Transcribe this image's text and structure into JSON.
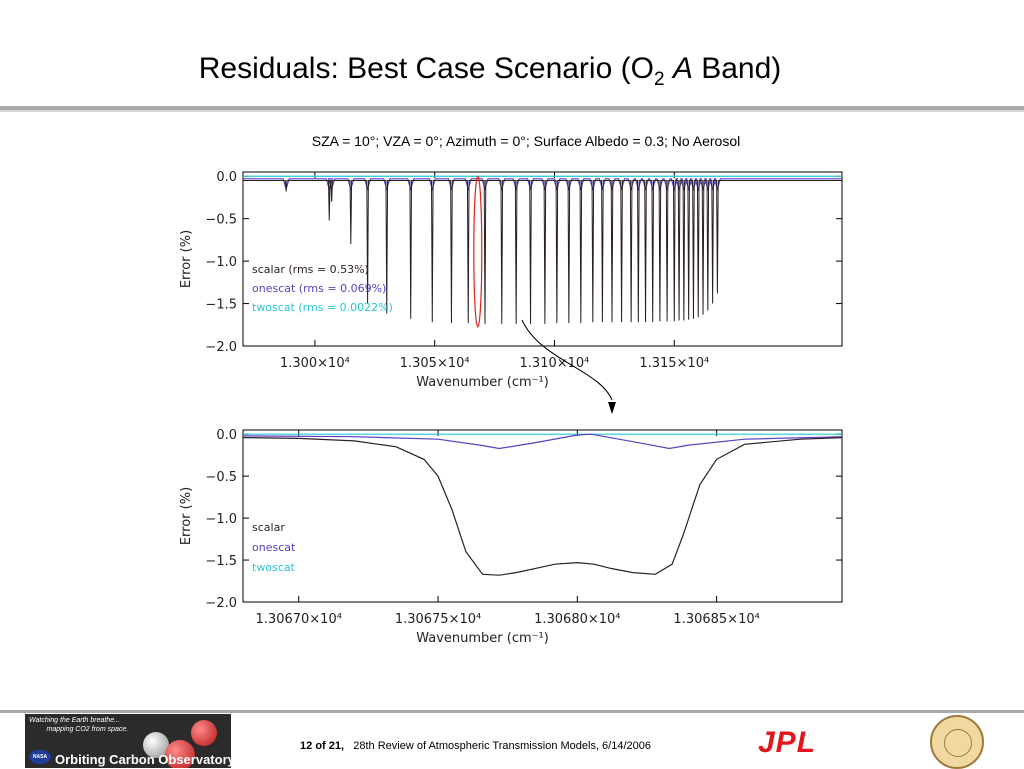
{
  "slide": {
    "title_main": "Residuals: Best Case Scenario (O",
    "title_sub": "2",
    "title_italic": "A",
    "title_end": " Band)",
    "subtitle": "SZA = 10°; VZA = 0°; Azimuth = 0°; Surface Albedo = 0.3; No Aerosol"
  },
  "footer": {
    "page_num": "12",
    "page_of": "of",
    "page_total": "21,",
    "event": "28th Review of Atmospheric Transmission Models, 6/14/2006",
    "oco_tagline_1": "Watching the Earth breathe...",
    "oco_tagline_2": "mapping CO2 from space.",
    "oco_name": "Orbiting Carbon Observatory",
    "nasa": "NASA",
    "jpl": "JPL"
  },
  "colors": {
    "scalar": "#2a1f24",
    "onescat": "#5a3fc0",
    "twoscat": "#27c6d8",
    "zoom_marker": "#e0201c"
  },
  "chart_data": [
    {
      "type": "line",
      "xlabel": "Wavenumber (cm⁻¹)",
      "ylabel": "Error (%)",
      "xlim": [
        12970,
        13220
      ],
      "ylim": [
        -2.0,
        0.05
      ],
      "xticks": [
        13000,
        13050,
        13100,
        13150
      ],
      "xtick_labels": [
        "1.300×10⁴",
        "1.305×10⁴",
        "1.310×10⁴",
        "1.315×10⁴"
      ],
      "yticks": [
        0.0,
        -0.5,
        -1.0,
        -1.5,
        -2.0
      ],
      "ytick_labels": [
        "0.0",
        "−0.5",
        "−1.0",
        "−1.5",
        "−2.0"
      ],
      "series": [
        {
          "name": "scalar (rms = 0.53%)",
          "baseline": -0.05,
          "lines": [
            [
              12988,
              -0.18
            ],
            [
              13006,
              -0.52
            ],
            [
              13007,
              -0.3
            ],
            [
              13015,
              -0.8
            ],
            [
              13022,
              -1.5
            ],
            [
              13030,
              -1.62
            ],
            [
              13040,
              -1.68
            ],
            [
              13049,
              -1.72
            ],
            [
              13057,
              -1.73
            ],
            [
              13064,
              -1.73
            ],
            [
              13071,
              -1.74
            ],
            [
              13078,
              -1.74
            ],
            [
              13084,
              -1.74
            ],
            [
              13090,
              -1.74
            ],
            [
              13096,
              -1.74
            ],
            [
              13101,
              -1.73
            ],
            [
              13106,
              -1.73
            ],
            [
              13111,
              -1.73
            ],
            [
              13116,
              -1.72
            ],
            [
              13120,
              -1.72
            ],
            [
              13124,
              -1.72
            ],
            [
              13128,
              -1.72
            ],
            [
              13132,
              -1.72
            ],
            [
              13135,
              -1.72
            ],
            [
              13138,
              -1.72
            ],
            [
              13141,
              -1.72
            ],
            [
              13144,
              -1.71
            ],
            [
              13147,
              -1.71
            ],
            [
              13150,
              -1.71
            ],
            [
              13152,
              -1.7
            ],
            [
              13154,
              -1.7
            ],
            [
              13156,
              -1.69
            ],
            [
              13158,
              -1.68
            ],
            [
              13160,
              -1.66
            ],
            [
              13162,
              -1.63
            ],
            [
              13164,
              -1.58
            ],
            [
              13166,
              -1.5
            ],
            [
              13168,
              -1.38
            ]
          ]
        },
        {
          "name": "onescat (rms = 0.069%)",
          "baseline": -0.03,
          "dips": -0.15
        },
        {
          "name": "twoscat (rms = 0.0022%)",
          "baseline": 0.0
        }
      ],
      "zoom_line": 13068
    },
    {
      "type": "line",
      "xlabel": "Wavenumber (cm⁻¹)",
      "ylabel": "Error (%)",
      "xlim": [
        13066.8,
        13068.95
      ],
      "ylim": [
        -2.0,
        0.05
      ],
      "xticks": [
        13067.0,
        13067.5,
        13068.0,
        13068.5
      ],
      "xtick_labels": [
        "1.30670×10⁴",
        "1.30675×10⁴",
        "1.30680×10⁴",
        "1.30685×10⁴"
      ],
      "yticks": [
        0.0,
        -0.5,
        -1.0,
        -1.5,
        -2.0
      ],
      "ytick_labels": [
        "0.0",
        "−0.5",
        "−1.0",
        "−1.5",
        "−2.0"
      ],
      "series": [
        {
          "name": "scalar",
          "x": [
            13066.8,
            13067.0,
            13067.2,
            13067.35,
            13067.45,
            13067.5,
            13067.55,
            13067.6,
            13067.66,
            13067.72,
            13067.78,
            13067.85,
            13067.92,
            13068.0,
            13068.06,
            13068.12,
            13068.2,
            13068.28,
            13068.34,
            13068.38,
            13068.44,
            13068.5,
            13068.6,
            13068.8,
            13068.95
          ],
          "y": [
            -0.04,
            -0.05,
            -0.08,
            -0.15,
            -0.3,
            -0.5,
            -0.9,
            -1.4,
            -1.67,
            -1.68,
            -1.65,
            -1.6,
            -1.55,
            -1.53,
            -1.55,
            -1.6,
            -1.65,
            -1.67,
            -1.55,
            -1.2,
            -0.6,
            -0.3,
            -0.12,
            -0.06,
            -0.04
          ]
        },
        {
          "name": "onescat",
          "x": [
            13066.8,
            13067.2,
            13067.5,
            13067.65,
            13067.72,
            13067.85,
            13068.0,
            13068.05,
            13068.2,
            13068.33,
            13068.4,
            13068.6,
            13068.95
          ],
          "y": [
            -0.02,
            -0.03,
            -0.06,
            -0.13,
            -0.17,
            -0.1,
            -0.01,
            0.0,
            -0.09,
            -0.17,
            -0.13,
            -0.06,
            -0.03
          ]
        },
        {
          "name": "twoscat",
          "x": [
            13066.8,
            13068.95
          ],
          "y": [
            0.0,
            0.0
          ]
        }
      ]
    }
  ]
}
